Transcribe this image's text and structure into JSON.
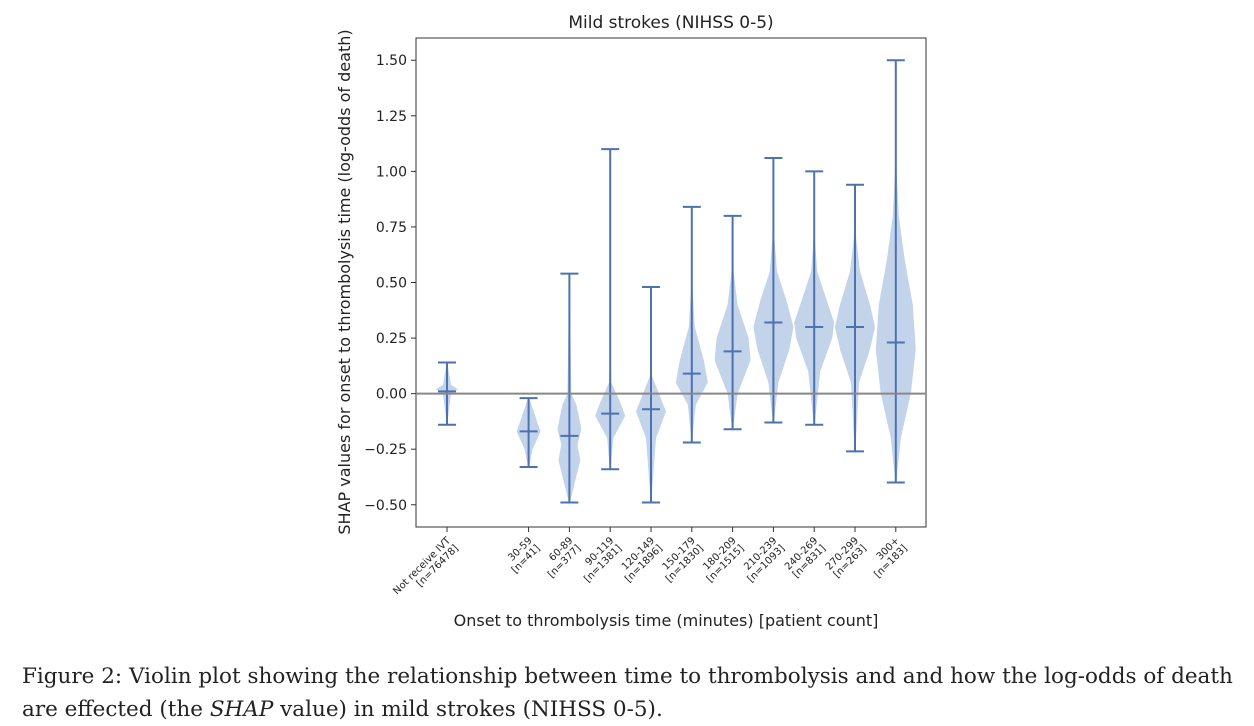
{
  "chart_data": {
    "type": "violin",
    "title": "Mild strokes (NIHSS 0-5)",
    "xlabel": "Onset to thrombolysis time (minutes) [patient count]",
    "ylabel": "SHAP values for onset to thrombolysis time (log-odds of death)",
    "ylim": [
      -0.6,
      1.6
    ],
    "yticks": [
      -0.5,
      -0.25,
      0.0,
      0.25,
      0.5,
      0.75,
      1.0,
      1.25,
      1.5
    ],
    "ytick_labels": [
      "−0.50",
      "−0.25",
      "0.00",
      "0.25",
      "0.50",
      "0.75",
      "1.00",
      "1.25",
      "1.50"
    ],
    "reference_line_y": 0.0,
    "violin_color": "#b9cbe6",
    "line_color": "#4c72b0",
    "reference_line_color": "#888888",
    "categories": [
      {
        "label_line1": "Not receive IVT",
        "label_line2": "[n=76478]",
        "slot": 0,
        "min": -0.14,
        "max": 0.14,
        "median": 0.01,
        "density_points": [
          [
            -0.14,
            0.01
          ],
          [
            0.0,
            0.2
          ],
          [
            0.02,
            0.55
          ],
          [
            0.04,
            0.2
          ],
          [
            0.14,
            0.01
          ]
        ]
      },
      {
        "label_line1": "30-59",
        "label_line2": "[n=41]",
        "slot": 2,
        "min": -0.33,
        "max": -0.02,
        "median": -0.17,
        "density_points": [
          [
            -0.33,
            0.02
          ],
          [
            -0.25,
            0.2
          ],
          [
            -0.17,
            0.6
          ],
          [
            -0.12,
            0.4
          ],
          [
            -0.02,
            0.03
          ]
        ]
      },
      {
        "label_line1": "60-89",
        "label_line2": "[n=377]",
        "slot": 3,
        "min": -0.49,
        "max": 0.54,
        "median": -0.19,
        "density_points": [
          [
            -0.49,
            0.02
          ],
          [
            -0.3,
            0.55
          ],
          [
            -0.23,
            0.4
          ],
          [
            -0.16,
            0.6
          ],
          [
            -0.05,
            0.35
          ],
          [
            0.0,
            0.1
          ],
          [
            0.54,
            0.0
          ]
        ]
      },
      {
        "label_line1": "90-119",
        "label_line2": "[n=1381]",
        "slot": 4,
        "min": -0.34,
        "max": 1.1,
        "median": -0.09,
        "density_points": [
          [
            -0.34,
            0.02
          ],
          [
            -0.2,
            0.15
          ],
          [
            -0.1,
            0.75
          ],
          [
            -0.05,
            0.55
          ],
          [
            0.05,
            0.06
          ],
          [
            0.2,
            0.0
          ],
          [
            1.1,
            0.0
          ]
        ]
      },
      {
        "label_line1": "120-149",
        "label_line2": "[n=1896]",
        "slot": 5,
        "min": -0.49,
        "max": 0.48,
        "median": -0.07,
        "density_points": [
          [
            -0.49,
            0.01
          ],
          [
            -0.2,
            0.25
          ],
          [
            -0.08,
            0.75
          ],
          [
            0.0,
            0.4
          ],
          [
            0.08,
            0.05
          ],
          [
            0.48,
            0.0
          ]
        ]
      },
      {
        "label_line1": "150-179",
        "label_line2": "[n=1830]",
        "slot": 6,
        "min": -0.22,
        "max": 0.84,
        "median": 0.09,
        "density_points": [
          [
            -0.22,
            0.0
          ],
          [
            -0.05,
            0.2
          ],
          [
            0.05,
            0.8
          ],
          [
            0.15,
            0.6
          ],
          [
            0.3,
            0.15
          ],
          [
            0.5,
            0.02
          ],
          [
            0.84,
            0.0
          ]
        ]
      },
      {
        "label_line1": "180-209",
        "label_line2": "[n=1515]",
        "slot": 7,
        "min": -0.16,
        "max": 0.8,
        "median": 0.19,
        "density_points": [
          [
            -0.16,
            0.02
          ],
          [
            0.0,
            0.25
          ],
          [
            0.15,
            0.9
          ],
          [
            0.25,
            0.8
          ],
          [
            0.4,
            0.25
          ],
          [
            0.55,
            0.05
          ],
          [
            0.8,
            0.0
          ]
        ]
      },
      {
        "label_line1": "210-239",
        "label_line2": "[n=1093]",
        "slot": 8,
        "min": -0.13,
        "max": 1.06,
        "median": 0.32,
        "density_points": [
          [
            -0.13,
            0.02
          ],
          [
            0.05,
            0.25
          ],
          [
            0.2,
            0.8
          ],
          [
            0.3,
            1.0
          ],
          [
            0.42,
            0.65
          ],
          [
            0.55,
            0.18
          ],
          [
            0.7,
            0.05
          ],
          [
            1.06,
            0.0
          ]
        ]
      },
      {
        "label_line1": "240-269",
        "label_line2": "[n=831]",
        "slot": 9,
        "min": -0.14,
        "max": 1.0,
        "median": 0.3,
        "density_points": [
          [
            -0.14,
            0.02
          ],
          [
            0.1,
            0.3
          ],
          [
            0.25,
            0.9
          ],
          [
            0.32,
            1.0
          ],
          [
            0.4,
            0.7
          ],
          [
            0.55,
            0.15
          ],
          [
            0.7,
            0.03
          ],
          [
            1.0,
            0.0
          ]
        ]
      },
      {
        "label_line1": "270-299",
        "label_line2": "[n=263]",
        "slot": 10,
        "min": -0.26,
        "max": 0.94,
        "median": 0.3,
        "density_points": [
          [
            -0.26,
            0.02
          ],
          [
            0.05,
            0.2
          ],
          [
            0.2,
            0.75
          ],
          [
            0.3,
            1.0
          ],
          [
            0.4,
            0.75
          ],
          [
            0.55,
            0.25
          ],
          [
            0.7,
            0.06
          ],
          [
            0.94,
            0.0
          ]
        ]
      },
      {
        "label_line1": "300+",
        "label_line2": "[n=183]",
        "slot": 11,
        "min": -0.4,
        "max": 1.5,
        "median": 0.23,
        "density_points": [
          [
            -0.4,
            0.02
          ],
          [
            -0.2,
            0.25
          ],
          [
            0.0,
            0.75
          ],
          [
            0.2,
            1.0
          ],
          [
            0.4,
            0.85
          ],
          [
            0.6,
            0.45
          ],
          [
            0.8,
            0.15
          ],
          [
            1.0,
            0.04
          ],
          [
            1.5,
            0.0
          ]
        ]
      }
    ]
  },
  "caption": {
    "prefix": "Figure 2: Violin plot showing the relationship between time to thrombolysis and and how the log-odds of death are effected (the ",
    "emphasis": "SHAP",
    "suffix": " value) in mild strokes (NIHSS 0-5)."
  }
}
